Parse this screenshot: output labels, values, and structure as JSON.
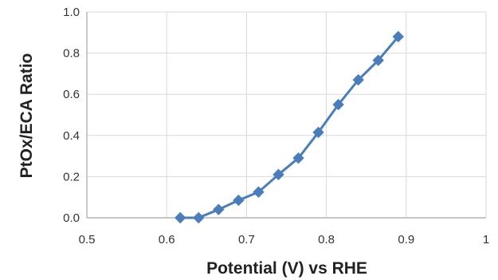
{
  "chart_data": {
    "type": "line",
    "title": "",
    "xlabel": "Potential (V) vs RHE",
    "ylabel": "PtOx/ECA Ratio",
    "xlim": [
      0.5,
      1.0
    ],
    "ylim": [
      0.0,
      1.0
    ],
    "x_ticks": [
      "0.5",
      "0.6",
      "0.7",
      "0.8",
      "0.9",
      "1"
    ],
    "y_ticks": [
      "0.0",
      "0.2",
      "0.4",
      "0.6",
      "0.8",
      "1.0"
    ],
    "grid": true,
    "legend": "none",
    "series": [
      {
        "color": "#4A7EBB",
        "marker": "diamond",
        "x": [
          0.617,
          0.64,
          0.665,
          0.69,
          0.715,
          0.74,
          0.765,
          0.79,
          0.815,
          0.84,
          0.865,
          0.89
        ],
        "y": [
          0.0,
          0.0,
          0.04,
          0.085,
          0.125,
          0.21,
          0.29,
          0.415,
          0.55,
          0.67,
          0.765,
          0.88
        ]
      }
    ]
  }
}
